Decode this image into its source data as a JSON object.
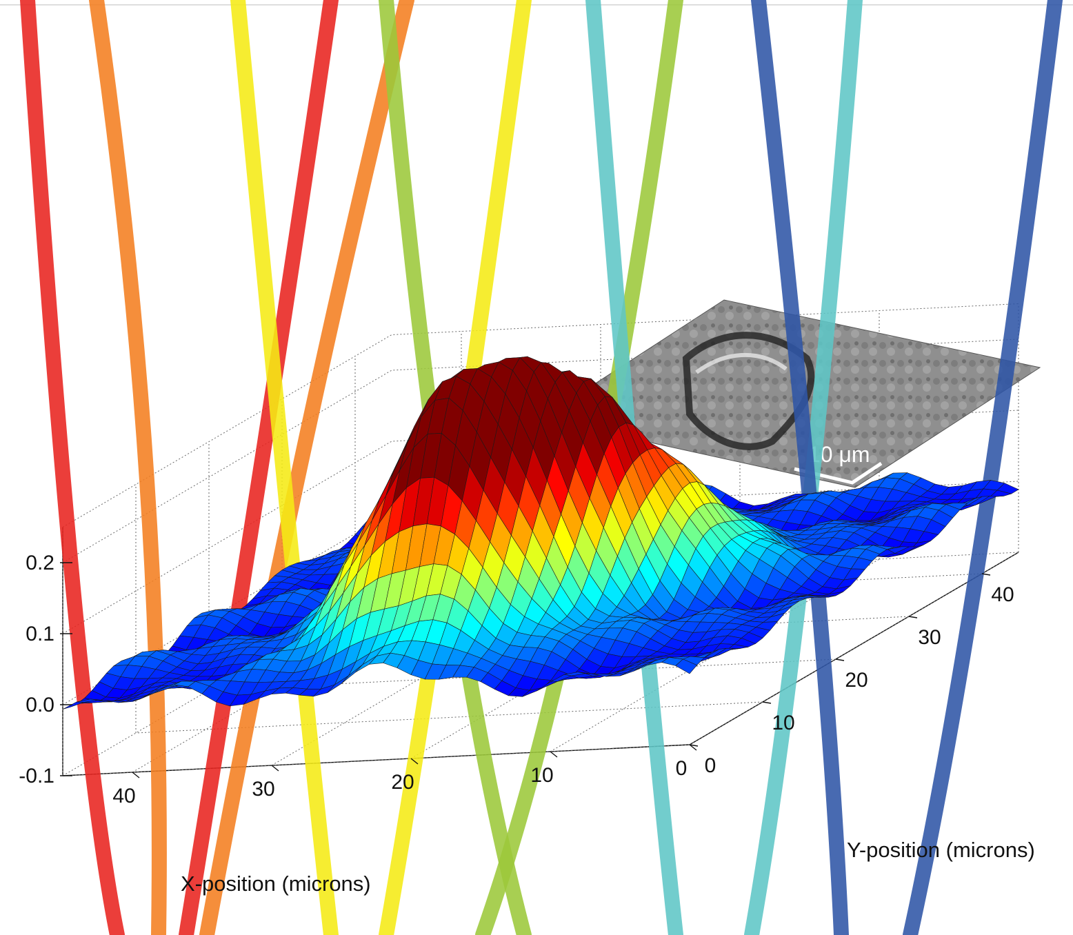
{
  "chart_data": {
    "type": "surface",
    "x_axis": {
      "label": "X-position (microns)",
      "range": [
        0,
        45
      ],
      "ticks": [
        0,
        10,
        20,
        30,
        40
      ],
      "tick_labels": [
        "0",
        "10",
        "20",
        "30",
        "40"
      ]
    },
    "y_axis": {
      "label": "Y-position (microns)",
      "range": [
        0,
        45
      ],
      "ticks": [
        0,
        10,
        20,
        30,
        40
      ],
      "tick_labels": [
        "0",
        "10",
        "20",
        "30",
        "40"
      ]
    },
    "z_axis": {
      "label": "",
      "range": [
        -0.1,
        0.25
      ],
      "ticks": [
        -0.1,
        0.0,
        0.1,
        0.2
      ],
      "tick_labels": [
        "-0.1",
        "0.0",
        "0.1",
        "0.2"
      ]
    },
    "grid": true,
    "colormap": "jet",
    "surface_peaks": [
      {
        "x": 22,
        "y": 9,
        "z": 0.24
      },
      {
        "x": 18,
        "y": 14,
        "z": 0.22
      },
      {
        "x": 16,
        "y": 19,
        "z": 0.17
      },
      {
        "x": 27,
        "y": 12,
        "z": 0.14
      },
      {
        "x": 12,
        "y": 24,
        "z": 0.1
      }
    ],
    "inset_image": {
      "description_label": "10 μm",
      "scale_bar_length_um": 10
    },
    "trace_colors": [
      "#e8231f",
      "#f47e20",
      "#f5ea14",
      "#9cc83a",
      "#5fc6c6",
      "#2f55a6"
    ]
  }
}
